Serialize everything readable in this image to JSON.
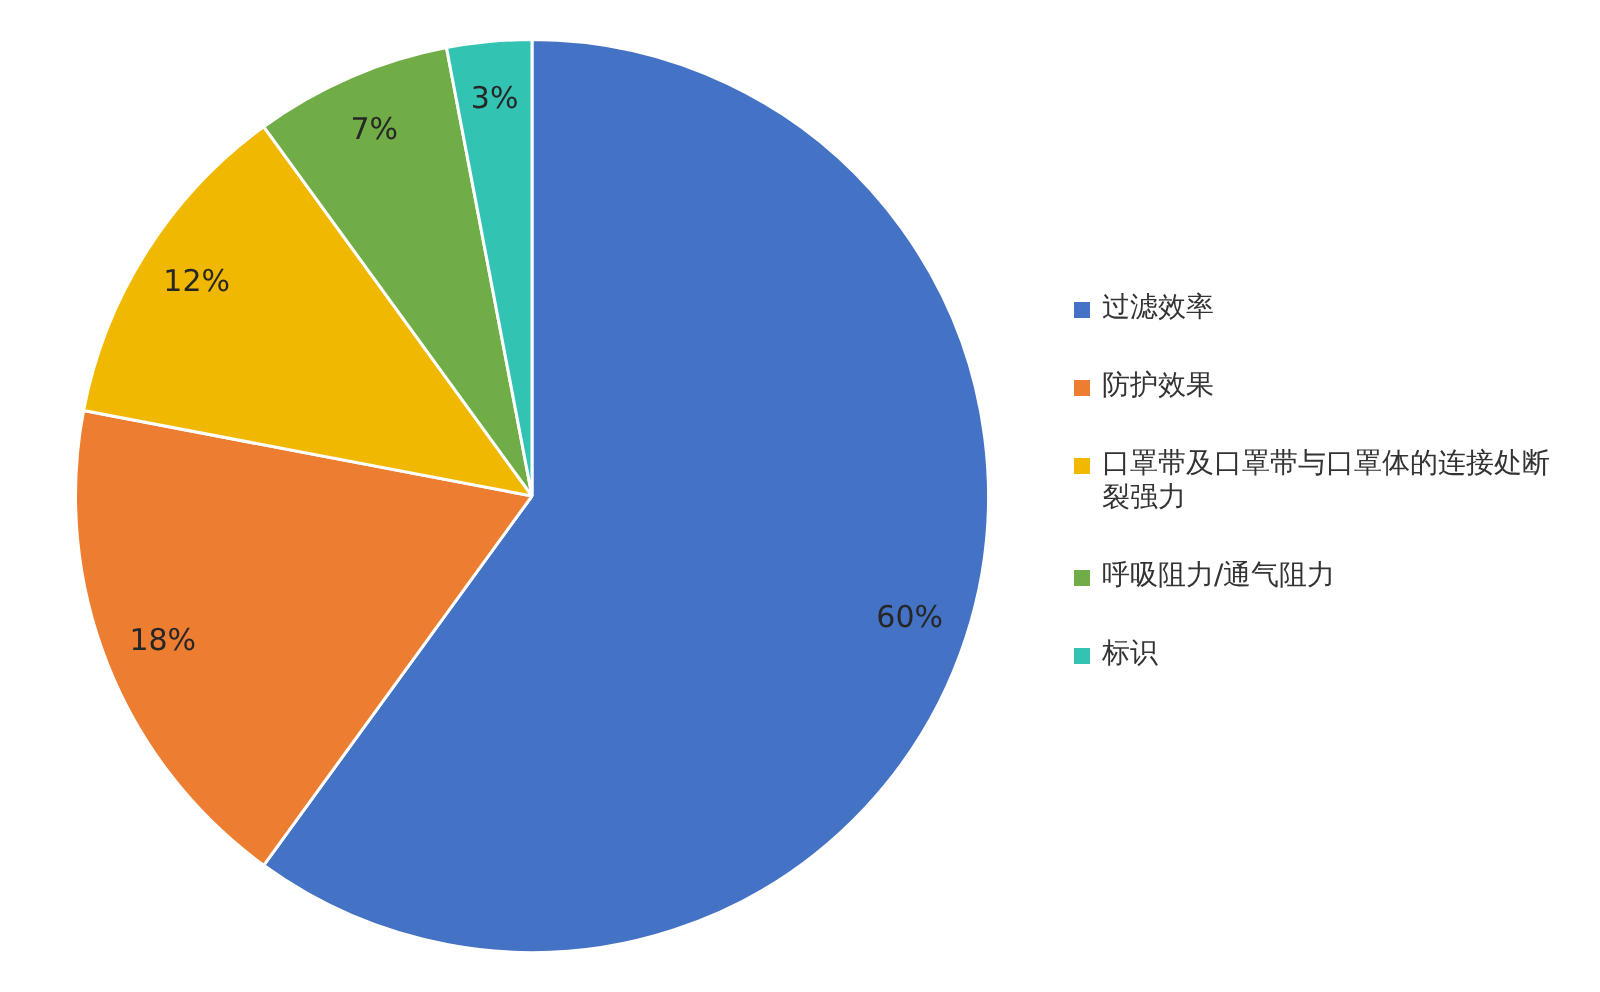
{
  "chart_data": {
    "type": "pie",
    "categories": [
      "过滤效率",
      "防护效果",
      "口罩带及口罩带与口罩体的连接处断裂强力",
      "呼吸阻力/通气阻力",
      "标识"
    ],
    "values": [
      60,
      18,
      12,
      7,
      3
    ],
    "colors": [
      "#4472c4",
      "#ed7d31",
      "#f0b800",
      "#70ad47",
      "#33c3b3"
    ],
    "value_labels": [
      "60%",
      "18%",
      "12%",
      "7%",
      "3%"
    ],
    "legend": "right"
  }
}
